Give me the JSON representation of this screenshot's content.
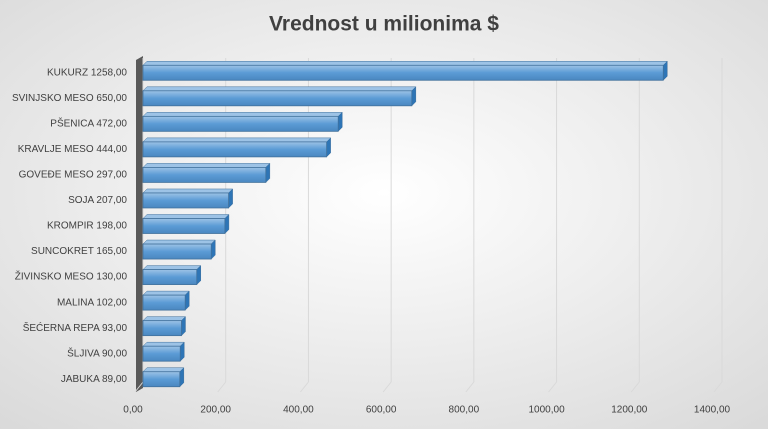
{
  "chart_data": {
    "type": "bar",
    "orientation": "horizontal",
    "title": "Vrednost u milionima $",
    "categories": [
      "KUKURZ 1258,00",
      "SVINJSKO MESO 650,00",
      "PŠENICA 472,00",
      "KRAVLJE MESO 444,00",
      "GOVEĐE MESO 297,00",
      "SOJA 207,00",
      "KROMPIR 198,00",
      "SUNCOKRET 165,00",
      "ŽIVINSKO MESO 130,00",
      "MALINA 102,00",
      "ŠEĆERNA REPA 93,00",
      "ŠLJIVA 90,00",
      "JABUKA 89,00"
    ],
    "values": [
      1258,
      650,
      472,
      444,
      297,
      207,
      198,
      165,
      130,
      102,
      93,
      90,
      89
    ],
    "color": "#5b9bd5",
    "xlim": [
      0,
      1400
    ],
    "xticks": [
      {
        "value": 0,
        "label": "0,00"
      },
      {
        "value": 200,
        "label": "200,00"
      },
      {
        "value": 400,
        "label": "400,00"
      },
      {
        "value": 600,
        "label": "600,00"
      },
      {
        "value": 800,
        "label": "800,00"
      },
      {
        "value": 1000,
        "label": "1000,00"
      },
      {
        "value": 1200,
        "label": "1200,00"
      },
      {
        "value": 1400,
        "label": "1400,00"
      }
    ],
    "grid": true
  }
}
